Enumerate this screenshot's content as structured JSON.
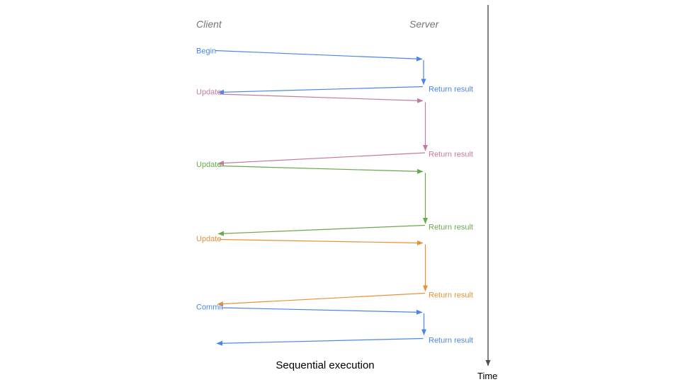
{
  "diagram": {
    "client_header": "Client",
    "server_header": "Server",
    "time_axis_label": "Time",
    "caption": "Sequential execution",
    "colors": {
      "blue": "#4a86e8",
      "pink": "#c27ba0",
      "green": "#6aa84f",
      "orange": "#e69138",
      "axis": "#4d4d4d",
      "header_gray": "#757575",
      "text_black": "#000000"
    },
    "messages": [
      {
        "label": "Begin",
        "color": "blue",
        "return_label": "Return result"
      },
      {
        "label": "Update",
        "color": "pink",
        "return_label": "Return result"
      },
      {
        "label": "Update",
        "color": "green",
        "return_label": "Return result"
      },
      {
        "label": "Update",
        "color": "orange",
        "return_label": "Return result"
      },
      {
        "label": "Commit",
        "color": "blue",
        "return_label": "Return result"
      }
    ]
  }
}
